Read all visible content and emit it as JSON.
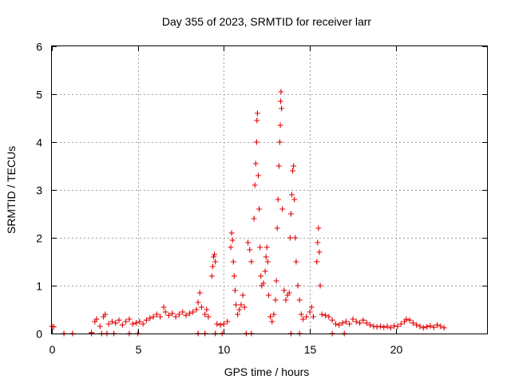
{
  "chart_data": {
    "type": "scatter",
    "title": "Day 355 of 2023, SRMTID for receiver larr",
    "xlabel": "GPS time / hours",
    "ylabel": "SRMTID / TECUs",
    "xlim": [
      0,
      25.3
    ],
    "ylim": [
      0,
      6
    ],
    "xticks": [
      0,
      5,
      10,
      15,
      20
    ],
    "yticks": [
      0,
      1,
      2,
      3,
      4,
      5,
      6
    ],
    "grid": true,
    "marker": "plus",
    "series": [
      {
        "name": "SRMTID",
        "color": "#e00000",
        "points": [
          [
            0.0,
            0.15
          ],
          [
            0.1,
            0.14
          ],
          [
            2.3,
            0.02
          ],
          [
            2.5,
            0.25
          ],
          [
            2.6,
            0.3
          ],
          [
            2.8,
            0.15
          ],
          [
            3.0,
            0.35
          ],
          [
            3.1,
            0.4
          ],
          [
            3.3,
            0.2
          ],
          [
            3.5,
            0.25
          ],
          [
            3.7,
            0.22
          ],
          [
            3.9,
            0.28
          ],
          [
            4.1,
            0.18
          ],
          [
            4.3,
            0.25
          ],
          [
            4.5,
            0.3
          ],
          [
            4.7,
            0.2
          ],
          [
            4.9,
            0.22
          ],
          [
            5.1,
            0.25
          ],
          [
            5.3,
            0.2
          ],
          [
            5.5,
            0.28
          ],
          [
            5.7,
            0.32
          ],
          [
            5.9,
            0.35
          ],
          [
            6.1,
            0.4
          ],
          [
            6.3,
            0.35
          ],
          [
            6.5,
            0.55
          ],
          [
            6.6,
            0.45
          ],
          [
            6.8,
            0.38
          ],
          [
            7.0,
            0.42
          ],
          [
            7.2,
            0.35
          ],
          [
            7.4,
            0.4
          ],
          [
            7.6,
            0.45
          ],
          [
            7.8,
            0.38
          ],
          [
            8.0,
            0.42
          ],
          [
            8.2,
            0.45
          ],
          [
            8.4,
            0.5
          ],
          [
            8.5,
            0.65
          ],
          [
            8.6,
            0.85
          ],
          [
            8.7,
            0.55
          ],
          [
            8.9,
            0.4
          ],
          [
            9.0,
            0.5
          ],
          [
            9.1,
            0.35
          ],
          [
            9.3,
            1.2
          ],
          [
            9.35,
            1.4
          ],
          [
            9.4,
            1.6
          ],
          [
            9.45,
            1.65
          ],
          [
            9.5,
            1.5
          ],
          [
            9.6,
            0.2
          ],
          [
            9.8,
            0.18
          ],
          [
            10.0,
            0.2
          ],
          [
            10.2,
            0.25
          ],
          [
            10.4,
            1.8
          ],
          [
            10.45,
            2.1
          ],
          [
            10.5,
            1.95
          ],
          [
            10.55,
            1.5
          ],
          [
            10.6,
            1.2
          ],
          [
            10.65,
            0.9
          ],
          [
            10.7,
            0.6
          ],
          [
            10.8,
            0.4
          ],
          [
            10.9,
            0.5
          ],
          [
            11.0,
            0.6
          ],
          [
            11.1,
            0.8
          ],
          [
            11.2,
            0.55
          ],
          [
            11.4,
            1.9
          ],
          [
            11.5,
            1.75
          ],
          [
            11.6,
            1.5
          ],
          [
            11.75,
            2.4
          ],
          [
            11.8,
            3.1
          ],
          [
            11.85,
            3.55
          ],
          [
            11.9,
            4.0
          ],
          [
            11.92,
            4.45
          ],
          [
            11.95,
            4.6
          ],
          [
            12.0,
            3.3
          ],
          [
            12.05,
            2.6
          ],
          [
            12.1,
            1.8
          ],
          [
            12.15,
            1.2
          ],
          [
            12.2,
            1.0
          ],
          [
            12.3,
            1.05
          ],
          [
            12.4,
            1.3
          ],
          [
            12.45,
            1.6
          ],
          [
            12.5,
            1.8
          ],
          [
            12.55,
            1.5
          ],
          [
            12.6,
            0.8
          ],
          [
            12.7,
            0.35
          ],
          [
            12.8,
            0.25
          ],
          [
            12.9,
            0.4
          ],
          [
            13.0,
            0.7
          ],
          [
            13.05,
            1.1
          ],
          [
            13.1,
            2.2
          ],
          [
            13.15,
            2.8
          ],
          [
            13.2,
            3.5
          ],
          [
            13.25,
            4.0
          ],
          [
            13.28,
            4.35
          ],
          [
            13.3,
            4.85
          ],
          [
            13.32,
            5.05
          ],
          [
            13.35,
            4.7
          ],
          [
            13.4,
            2.6
          ],
          [
            13.5,
            0.9
          ],
          [
            13.6,
            0.7
          ],
          [
            13.7,
            0.8
          ],
          [
            13.8,
            0.85
          ],
          [
            13.85,
            2.0
          ],
          [
            13.9,
            2.5
          ],
          [
            13.95,
            2.9
          ],
          [
            14.0,
            3.4
          ],
          [
            14.05,
            3.5
          ],
          [
            14.1,
            2.8
          ],
          [
            14.15,
            2.0
          ],
          [
            14.2,
            1.5
          ],
          [
            14.3,
            1.0
          ],
          [
            14.4,
            0.7
          ],
          [
            14.5,
            0.4
          ],
          [
            14.6,
            0.3
          ],
          [
            14.8,
            0.35
          ],
          [
            15.0,
            0.45
          ],
          [
            15.1,
            0.55
          ],
          [
            15.2,
            0.35
          ],
          [
            15.4,
            1.5
          ],
          [
            15.45,
            1.9
          ],
          [
            15.5,
            2.2
          ],
          [
            15.55,
            1.7
          ],
          [
            15.6,
            1.0
          ],
          [
            15.7,
            0.4
          ],
          [
            15.9,
            0.38
          ],
          [
            16.1,
            0.35
          ],
          [
            16.3,
            0.28
          ],
          [
            16.5,
            0.2
          ],
          [
            16.7,
            0.18
          ],
          [
            16.9,
            0.22
          ],
          [
            17.1,
            0.25
          ],
          [
            17.3,
            0.2
          ],
          [
            17.5,
            0.3
          ],
          [
            17.7,
            0.25
          ],
          [
            17.9,
            0.22
          ],
          [
            18.1,
            0.28
          ],
          [
            18.3,
            0.22
          ],
          [
            18.5,
            0.18
          ],
          [
            18.7,
            0.15
          ],
          [
            18.9,
            0.14
          ],
          [
            19.1,
            0.15
          ],
          [
            19.3,
            0.13
          ],
          [
            19.5,
            0.15
          ],
          [
            19.7,
            0.12
          ],
          [
            19.9,
            0.16
          ],
          [
            20.1,
            0.15
          ],
          [
            20.3,
            0.2
          ],
          [
            20.5,
            0.25
          ],
          [
            20.6,
            0.3
          ],
          [
            20.8,
            0.28
          ],
          [
            21.0,
            0.22
          ],
          [
            21.2,
            0.18
          ],
          [
            21.4,
            0.15
          ],
          [
            21.6,
            0.12
          ],
          [
            21.8,
            0.14
          ],
          [
            22.0,
            0.16
          ],
          [
            22.2,
            0.13
          ],
          [
            22.4,
            0.18
          ],
          [
            22.6,
            0.15
          ],
          [
            22.8,
            0.12
          ]
        ],
        "zero_markers": [
          0.7,
          1.2,
          2.3,
          2.9,
          3.2,
          3.6,
          4.5,
          5.0,
          8.5,
          8.9,
          9.5,
          9.9,
          11.3,
          11.6,
          13.9,
          14.4,
          16.3,
          17.0
        ]
      }
    ]
  }
}
